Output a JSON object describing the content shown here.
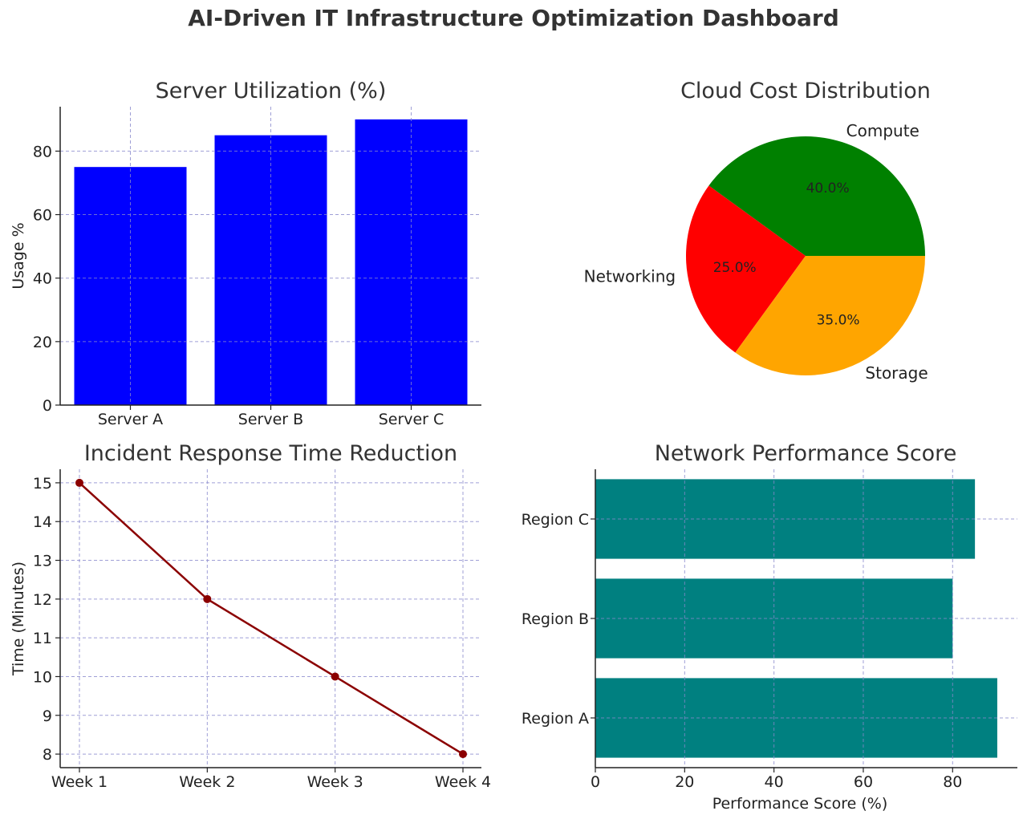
{
  "title": "AI-Driven IT Infrastructure Optimization Dashboard",
  "chart_data": [
    {
      "type": "bar",
      "title": "Server Utilization (%)",
      "xlabel": "",
      "ylabel": "Usage %",
      "categories": [
        "Server A",
        "Server B",
        "Server C"
      ],
      "values": [
        75,
        85,
        90
      ],
      "ylim": [
        0,
        94
      ],
      "yticks": [
        0,
        20,
        40,
        60,
        80
      ],
      "color": "#0000ff",
      "grid": true
    },
    {
      "type": "pie",
      "title": "Cloud Cost Distribution",
      "labels": [
        "Compute",
        "Networking",
        "Storage"
      ],
      "values": [
        40.0,
        25.0,
        35.0
      ],
      "pct_labels": [
        "40.0%",
        "25.0%",
        "35.0%"
      ],
      "colors": [
        "#008000",
        "#ff0000",
        "#ffa500"
      ]
    },
    {
      "type": "line",
      "title": "Incident Response Time Reduction",
      "xlabel": "",
      "ylabel": "Time (Minutes)",
      "categories": [
        "Week 1",
        "Week 2",
        "Week 3",
        "Week 4"
      ],
      "values": [
        15,
        12,
        10,
        8
      ],
      "ylim": [
        7.65,
        15.35
      ],
      "yticks": [
        8,
        9,
        10,
        11,
        12,
        13,
        14,
        15
      ],
      "color": "#8b0000",
      "grid": true
    },
    {
      "type": "bar",
      "orientation": "horizontal",
      "title": "Network Performance Score",
      "xlabel": "Performance Score (%)",
      "ylabel": "",
      "categories": [
        "Region A",
        "Region B",
        "Region C"
      ],
      "values": [
        90,
        80,
        85
      ],
      "xlim": [
        0,
        94.5
      ],
      "xticks": [
        0,
        20,
        40,
        60,
        80
      ],
      "color": "#008080",
      "grid": true
    }
  ]
}
